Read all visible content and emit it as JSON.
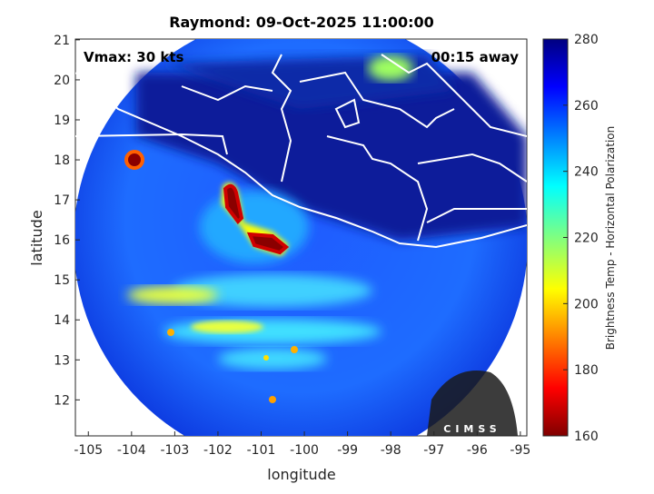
{
  "title": "Raymond: 09-Oct-2025 11:00:00",
  "annotations": {
    "vmax": "Vmax: 30 kts",
    "away": "00:15 away"
  },
  "xaxis": {
    "label": "longitude",
    "lim": [
      -105.3,
      -94.85
    ],
    "ticks": [
      -105,
      -104,
      -103,
      -102,
      -101,
      -100,
      -99,
      -98,
      -97,
      -96,
      -95
    ]
  },
  "yaxis": {
    "label": "latitude",
    "lim": [
      11.1,
      21.02
    ],
    "ticks": [
      12,
      13,
      14,
      15,
      16,
      17,
      18,
      19,
      20,
      21
    ]
  },
  "colorbar": {
    "label": "Brightness Temp - Horizontal Polarization",
    "lim": [
      160,
      280
    ],
    "ticks": [
      160,
      180,
      200,
      220,
      240,
      260,
      280
    ]
  },
  "logo": "CIMSS"
}
